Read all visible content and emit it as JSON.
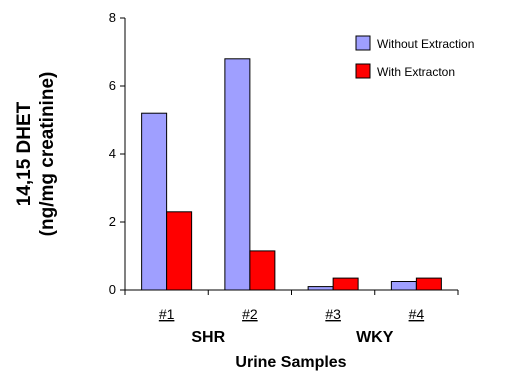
{
  "chart_data": {
    "type": "bar",
    "categories": [
      "#1",
      "#2",
      "#3",
      "#4"
    ],
    "groups": [
      {
        "label": "SHR",
        "categories": [
          "#1",
          "#2"
        ]
      },
      {
        "label": "WKY",
        "categories": [
          "#3",
          "#4"
        ]
      }
    ],
    "series": [
      {
        "name": "Without Extraction",
        "color": "#9f9fff",
        "values": [
          5.2,
          6.8,
          0.1,
          0.25
        ]
      },
      {
        "name": "With Extracton",
        "color": "#ff0000",
        "values": [
          2.3,
          1.15,
          0.35,
          0.35
        ]
      }
    ],
    "ylabel_line1": "14,15 DHET",
    "ylabel_line2": "(ng/mg creatinine)",
    "xlabel": "Urine Samples",
    "ylim": [
      0,
      8
    ],
    "yticks": [
      0,
      2,
      4,
      6,
      8
    ],
    "grid": false,
    "legend_position": "top-right"
  }
}
